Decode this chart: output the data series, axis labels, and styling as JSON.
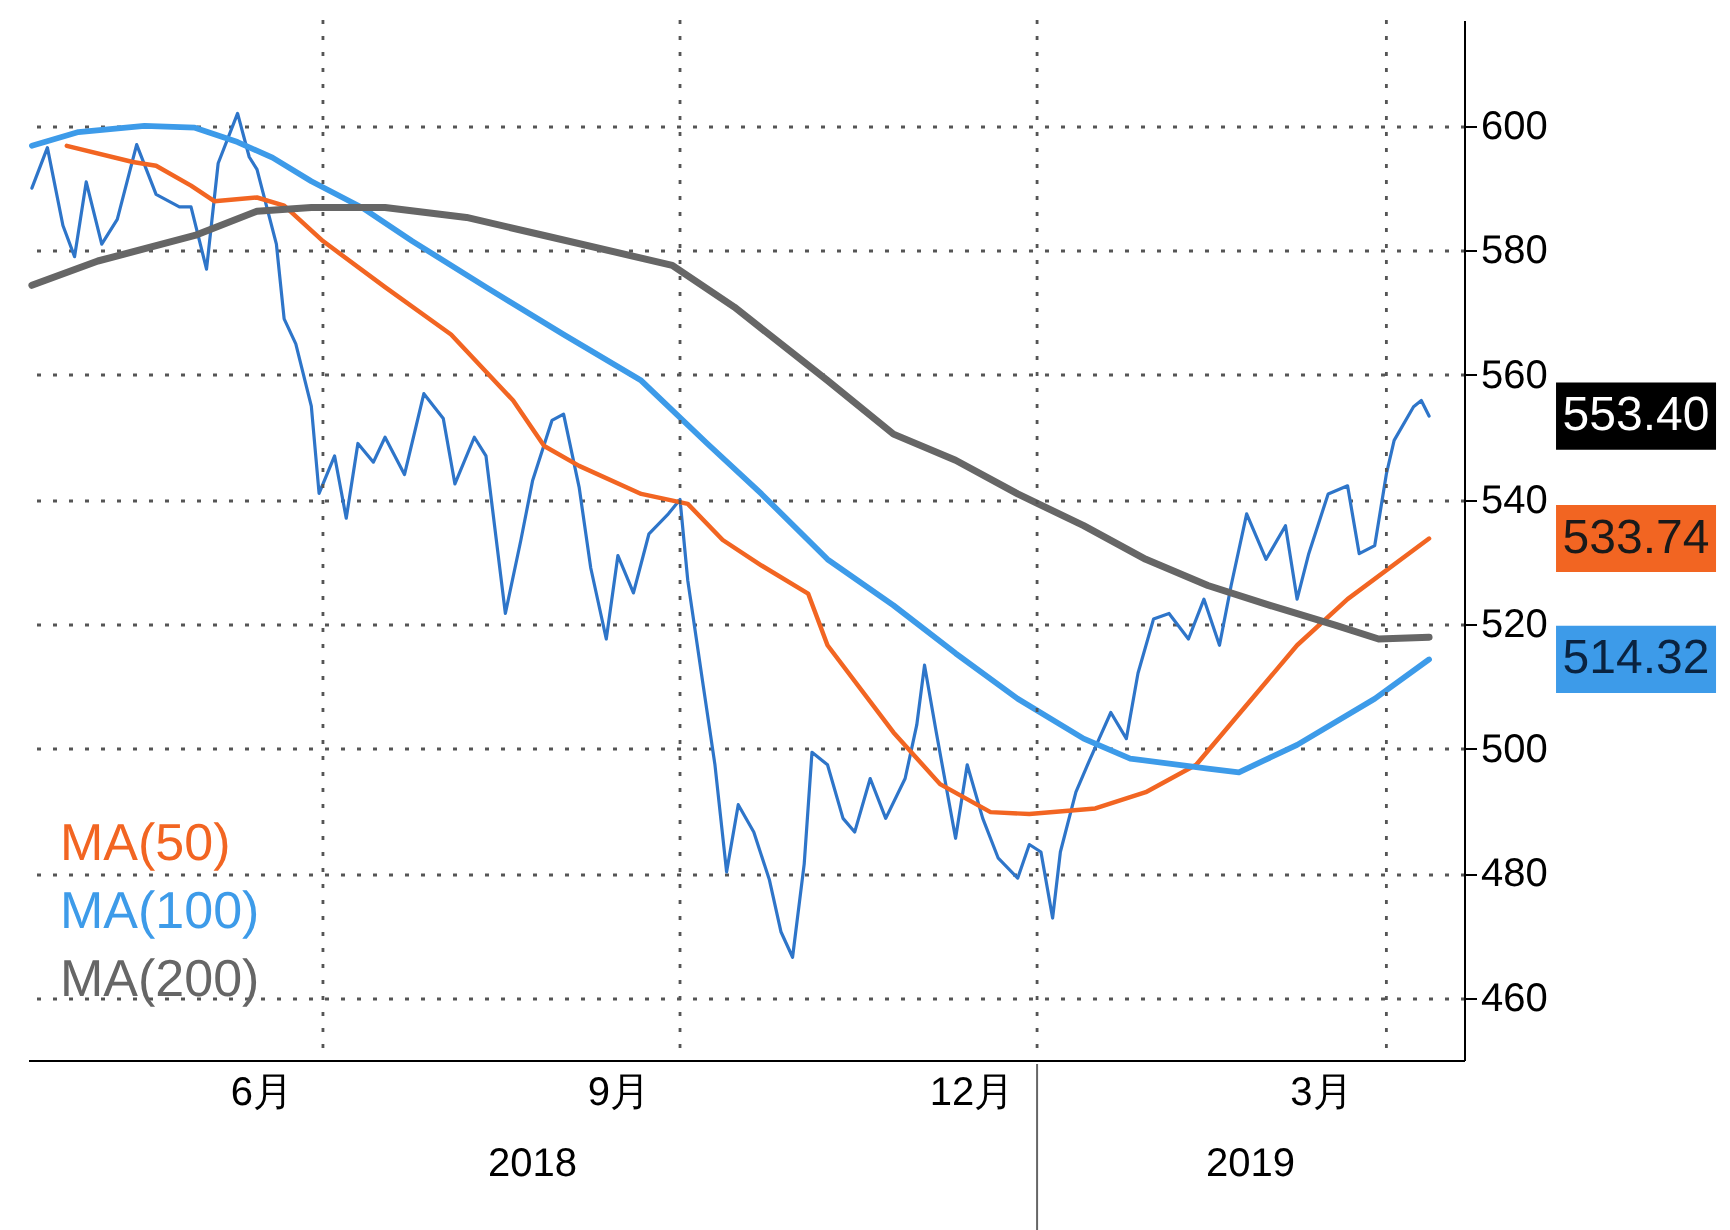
{
  "chart_data": {
    "type": "line",
    "legend": "bottom left",
    "grid": true,
    "xlim": [
      "2018-04-16",
      "2019-04-21"
    ],
    "ylim": [
      450,
      617
    ],
    "xticks": [
      {
        "value": "2018-06-15",
        "label": "6月"
      },
      {
        "value": "2018-07-01",
        "label": null
      },
      {
        "value": "2018-09-15",
        "label": "9月"
      },
      {
        "value": "2018-10-01",
        "label": null
      },
      {
        "value": "2018-12-15",
        "label": "12月"
      },
      {
        "value": "2019-01-01",
        "label": null
      },
      {
        "value": "2019-03-15",
        "label": "3月"
      },
      {
        "value": "2019-04-01",
        "label": null
      }
    ],
    "yticks": [
      460,
      480,
      500,
      520,
      540,
      560,
      580,
      600
    ],
    "annotations": [
      "2018",
      "2019",
      {
        "text": "553.40",
        "x": "2019-04-12",
        "y": 553.4
      },
      {
        "text": "533.74",
        "x": "2019-04-12",
        "y": 533.74
      },
      {
        "text": "514.32",
        "x": "2019-04-12",
        "y": 514.32
      }
    ],
    "series": [
      {
        "color": "#2e75c9",
        "x": [
          "2018-04-17",
          "2018-04-21",
          "2018-04-25",
          "2018-04-28",
          "2018-05-01",
          "2018-05-05",
          "2018-05-09",
          "2018-05-14",
          "2018-05-19",
          "2018-05-25",
          "2018-05-28",
          "2018-06-01",
          "2018-06-04",
          "2018-06-09",
          "2018-06-12",
          "2018-06-14",
          "2018-06-19",
          "2018-06-21",
          "2018-06-24",
          "2018-06-28",
          "2018-06-30",
          "2018-07-04",
          "2018-07-07",
          "2018-07-10",
          "2018-07-14",
          "2018-07-17",
          "2018-07-22",
          "2018-07-27",
          "2018-08-01",
          "2018-08-04",
          "2018-08-09",
          "2018-08-12",
          "2018-08-17",
          "2018-08-21",
          "2018-08-24",
          "2018-08-29",
          "2018-09-01",
          "2018-09-05",
          "2018-09-08",
          "2018-09-12",
          "2018-09-15",
          "2018-09-19",
          "2018-09-23",
          "2018-09-28",
          "2018-10-01",
          "2018-10-03",
          "2018-10-07",
          "2018-10-10",
          "2018-10-13",
          "2018-10-16",
          "2018-10-20",
          "2018-10-24",
          "2018-10-27",
          "2018-10-30",
          "2018-11-02",
          "2018-11-04",
          "2018-11-08",
          "2018-11-12",
          "2018-11-15",
          "2018-11-19",
          "2018-11-23",
          "2018-11-28",
          "2018-12-01",
          "2018-12-03",
          "2018-12-06",
          "2018-12-11",
          "2018-12-14",
          "2018-12-18",
          "2018-12-22",
          "2018-12-27",
          "2018-12-30",
          "2019-01-02",
          "2019-01-05",
          "2019-01-07",
          "2019-01-11",
          "2019-01-14",
          "2019-01-17",
          "2019-01-20",
          "2019-01-24",
          "2019-01-27",
          "2019-01-31",
          "2019-02-04",
          "2019-02-09",
          "2019-02-13",
          "2019-02-17",
          "2019-02-20",
          "2019-02-24",
          "2019-03-01",
          "2019-03-06",
          "2019-03-09",
          "2019-03-12",
          "2019-03-17",
          "2019-03-22",
          "2019-03-25",
          "2019-03-29",
          "2019-04-01",
          "2019-04-03",
          "2019-04-08",
          "2019-04-10",
          "2019-04-12"
        ],
        "values": [
          590,
          596.5,
          584,
          579,
          591,
          581,
          585,
          597,
          589,
          587,
          587,
          577,
          594,
          602,
          595,
          593,
          581,
          569,
          565,
          555,
          541,
          547,
          537,
          549,
          546,
          550,
          544,
          557,
          553,
          542.5,
          550,
          547,
          521.7,
          533.5,
          543,
          552.7,
          553.7,
          542,
          529,
          517.6,
          531,
          525,
          534.5,
          537.7,
          540,
          527,
          510,
          497.4,
          480.2,
          491,
          486.6,
          479,
          470.6,
          466.5,
          481.5,
          499.4,
          497.4,
          488.8,
          486.6,
          495.2,
          488.8,
          495.2,
          503.8,
          513.4,
          502.7,
          485.6,
          497.4,
          488.8,
          482.4,
          479.2,
          484.6,
          483.4,
          472.8,
          483.4,
          493,
          497.4,
          501.6,
          505.8,
          501.6,
          512.1,
          520.8,
          521.7,
          517.6,
          524,
          516.6,
          526.2,
          537.7,
          530.4,
          535.8,
          524,
          531.3,
          540.9,
          542.2,
          531.3,
          532.6,
          544.1,
          549.5,
          554.9,
          555.9,
          553.4
        ]
      },
      {
        "name": "MA(50)",
        "color": "#f26522",
        "x": [
          "2018-04-26",
          "2018-05-13",
          "2018-05-19",
          "2018-05-28",
          "2018-06-03",
          "2018-06-14",
          "2018-06-21",
          "2018-07-01",
          "2018-07-17",
          "2018-08-03",
          "2018-08-19",
          "2018-08-27",
          "2018-09-05",
          "2018-09-21",
          "2018-10-03",
          "2018-10-12",
          "2018-10-22",
          "2018-11-03",
          "2018-11-08",
          "2018-11-25",
          "2018-12-07",
          "2018-12-20",
          "2018-12-30",
          "2019-01-16",
          "2019-01-29",
          "2019-02-11",
          "2019-02-24",
          "2019-03-09",
          "2019-03-22",
          "2019-04-12"
        ],
        "values": [
          596.8,
          594.2,
          593.6,
          590.4,
          587.9,
          588.5,
          587.2,
          581.5,
          574.1,
          566.5,
          555.9,
          548.6,
          545.4,
          540.9,
          539.3,
          533.5,
          529.4,
          524.9,
          516.6,
          502.6,
          494.3,
          489.8,
          489.5,
          490.4,
          493,
          497.4,
          507,
          516.6,
          524,
          533.74
        ]
      },
      {
        "name": "MA(100)",
        "color": "#3d9be9",
        "x": [
          "2018-04-17",
          "2018-04-29",
          "2018-05-16",
          "2018-05-29",
          "2018-06-09",
          "2018-06-18",
          "2018-06-28",
          "2018-07-11",
          "2018-07-24",
          "2018-08-12",
          "2018-09-01",
          "2018-09-21",
          "2018-10-08",
          "2018-10-22",
          "2018-11-08",
          "2018-11-25",
          "2018-12-11",
          "2018-12-27",
          "2019-01-13",
          "2019-01-25",
          "2019-02-14",
          "2019-02-22",
          "2019-03-09",
          "2019-03-29",
          "2019-04-12"
        ],
        "values": [
          596.8,
          599,
          600,
          599.7,
          597.4,
          594.9,
          591.1,
          586.9,
          581.5,
          574.1,
          566.5,
          559.1,
          549,
          540.9,
          530.4,
          523,
          515.3,
          508,
          501.6,
          498.4,
          496.8,
          496.2,
          500.6,
          508,
          514.32
        ]
      },
      {
        "name": "MA(200)",
        "color": "#666666",
        "x": [
          "2018-04-17",
          "2018-05-04",
          "2018-05-29",
          "2018-06-14",
          "2018-06-28",
          "2018-07-17",
          "2018-08-07",
          "2018-08-27",
          "2018-09-29",
          "2018-10-15",
          "2018-11-08",
          "2018-11-25",
          "2018-12-11",
          "2018-12-27",
          "2019-01-13",
          "2019-01-29",
          "2019-02-14",
          "2019-03-02",
          "2019-03-19",
          "2019-03-30",
          "2019-04-12"
        ],
        "values": [
          574.4,
          578.3,
          582.4,
          586.3,
          586.9,
          586.9,
          585.3,
          582.4,
          577.6,
          570.9,
          559.1,
          550.5,
          546.3,
          540.9,
          535.8,
          530.4,
          526.2,
          523,
          519.8,
          517.6,
          517.9
        ]
      }
    ]
  }
}
